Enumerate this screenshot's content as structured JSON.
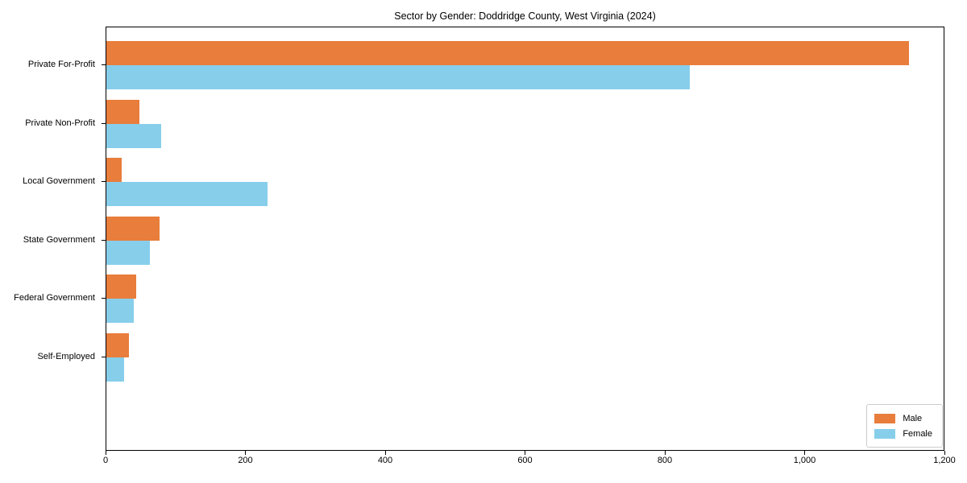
{
  "chart_data": {
    "type": "bar",
    "orientation": "horizontal",
    "title": "Sector by Gender: Doddridge County, West Virginia (2024)",
    "categories": [
      "Private For-Profit",
      "Private Non-Profit",
      "Local Government",
      "State Government",
      "Federal Government",
      "Self-Employed"
    ],
    "series": [
      {
        "name": "Male",
        "color": "#e87d3c",
        "values": [
          1148,
          47,
          22,
          76,
          43,
          32
        ]
      },
      {
        "name": "Female",
        "color": "#87ceeb",
        "values": [
          835,
          78,
          231,
          62,
          39,
          25
        ]
      }
    ],
    "xlabel": "",
    "ylabel": "",
    "xlim": [
      0,
      1200
    ],
    "x_ticks": [
      0,
      200,
      400,
      600,
      800,
      1000,
      1200
    ],
    "x_tick_labels": [
      "0",
      "200",
      "400",
      "600",
      "800",
      "1,000",
      "1,200"
    ],
    "grid": false,
    "legend_position": "lower right",
    "background_color": "#ffffff",
    "spine_color": "#000000"
  }
}
